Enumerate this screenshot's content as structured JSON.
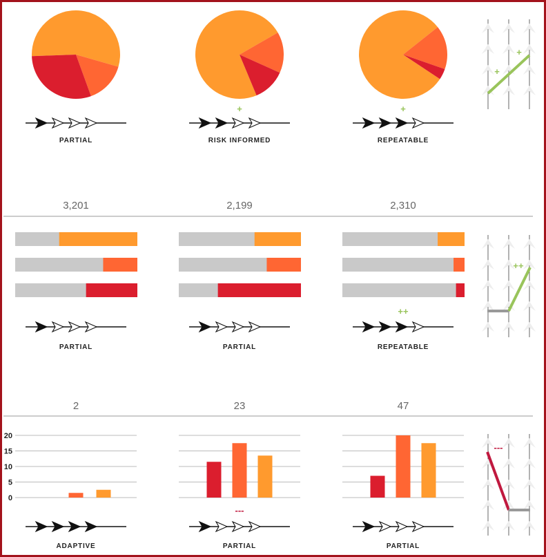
{
  "colors": {
    "orange": "#ff9a2e",
    "orange_red": "#ff6633",
    "red": "#db1e2e",
    "gray_bar": "#c9c9c9",
    "trend_up": "#99c45b",
    "trend_flat": "#999999",
    "trend_down": "#c0193f",
    "frame": "#a3131c"
  },
  "rows": [
    {
      "name": "pie-row",
      "count": [
        null,
        null,
        null
      ],
      "trend": {
        "direction": "up",
        "marks": [
          {
            "text": "+",
            "color": "#99c45b"
          },
          {
            "text": "+",
            "color": "#99c45b"
          }
        ]
      }
    },
    {
      "name": "stacked-bar-row",
      "count": [
        "3,201",
        "2,199",
        "2,310"
      ],
      "trend": {
        "direction": "flat-then-up",
        "marks": [
          {
            "text": "++",
            "color": "#99c45b"
          }
        ]
      }
    },
    {
      "name": "column-row",
      "count": [
        "2",
        "23",
        "47"
      ],
      "trend": {
        "direction": "down-then-flat",
        "marks": [
          {
            "text": "---",
            "color": "#c0193f"
          }
        ]
      }
    }
  ],
  "chart_data": [
    {
      "type": "pie",
      "panel": "row1-col1",
      "slices": [
        {
          "value": 55,
          "color": "#ff9a2e"
        },
        {
          "value": 15,
          "color": "#ff6633"
        },
        {
          "value": 30,
          "color": "#db1e2e"
        }
      ],
      "maturity_label": "PARTIAL",
      "maturity_level": 1,
      "change_mark": ""
    },
    {
      "type": "pie",
      "panel": "row1-col2",
      "slices": [
        {
          "value": 73,
          "color": "#ff9a2e"
        },
        {
          "value": 15,
          "color": "#ff6633"
        },
        {
          "value": 12,
          "color": "#db1e2e"
        }
      ],
      "maturity_label": "RISK INFORMED",
      "maturity_level": 2,
      "change_mark": "+"
    },
    {
      "type": "pie",
      "panel": "row1-col3",
      "slices": [
        {
          "value": 80,
          "color": "#ff9a2e"
        },
        {
          "value": 16,
          "color": "#ff6633"
        },
        {
          "value": 4,
          "color": "#db1e2e"
        }
      ],
      "maturity_label": "REPEATABLE",
      "maturity_level": 3,
      "change_mark": "+"
    },
    {
      "type": "bar",
      "panel": "row2-col1",
      "orientation": "horizontal",
      "bars": [
        {
          "fraction": 0.64,
          "color": "#ff9a2e"
        },
        {
          "fraction": 0.28,
          "color": "#ff6633"
        },
        {
          "fraction": 0.42,
          "color": "#db1e2e"
        }
      ],
      "maturity_label": "PARTIAL",
      "maturity_level": 1,
      "change_mark": ""
    },
    {
      "type": "bar",
      "panel": "row2-col2",
      "orientation": "horizontal",
      "bars": [
        {
          "fraction": 0.38,
          "color": "#ff9a2e"
        },
        {
          "fraction": 0.28,
          "color": "#ff6633"
        },
        {
          "fraction": 0.68,
          "color": "#db1e2e"
        }
      ],
      "maturity_label": "PARTIAL",
      "maturity_level": 1,
      "change_mark": ""
    },
    {
      "type": "bar",
      "panel": "row2-col3",
      "orientation": "horizontal",
      "bars": [
        {
          "fraction": 0.22,
          "color": "#ff9a2e"
        },
        {
          "fraction": 0.09,
          "color": "#ff6633"
        },
        {
          "fraction": 0.07,
          "color": "#db1e2e"
        }
      ],
      "maturity_label": "REPEATABLE",
      "maturity_level": 3,
      "change_mark": "++"
    },
    {
      "type": "bar",
      "panel": "row3-col1",
      "orientation": "vertical",
      "yticks": [
        "20",
        "15",
        "10",
        "5",
        "0"
      ],
      "ylim": [
        0,
        20
      ],
      "values": [
        {
          "value": 1.5,
          "color": "#ff6633"
        },
        {
          "value": 2.5,
          "color": "#ff9a2e"
        }
      ],
      "maturity_label": "ADAPTIVE",
      "maturity_level": 4,
      "change_mark": ""
    },
    {
      "type": "bar",
      "panel": "row3-col2",
      "orientation": "vertical",
      "ylim": [
        0,
        20
      ],
      "values": [
        {
          "value": 11.5,
          "color": "#db1e2e"
        },
        {
          "value": 17.5,
          "color": "#ff6633"
        },
        {
          "value": 13.5,
          "color": "#ff9a2e"
        }
      ],
      "maturity_label": "PARTIAL",
      "maturity_level": 1,
      "change_mark": "---"
    },
    {
      "type": "bar",
      "panel": "row3-col3",
      "orientation": "vertical",
      "ylim": [
        0,
        20
      ],
      "values": [
        {
          "value": 7,
          "color": "#db1e2e"
        },
        {
          "value": 20,
          "color": "#ff6633"
        },
        {
          "value": 17.5,
          "color": "#ff9a2e"
        }
      ],
      "maturity_label": "PARTIAL",
      "maturity_level": 1,
      "change_mark": ""
    }
  ]
}
